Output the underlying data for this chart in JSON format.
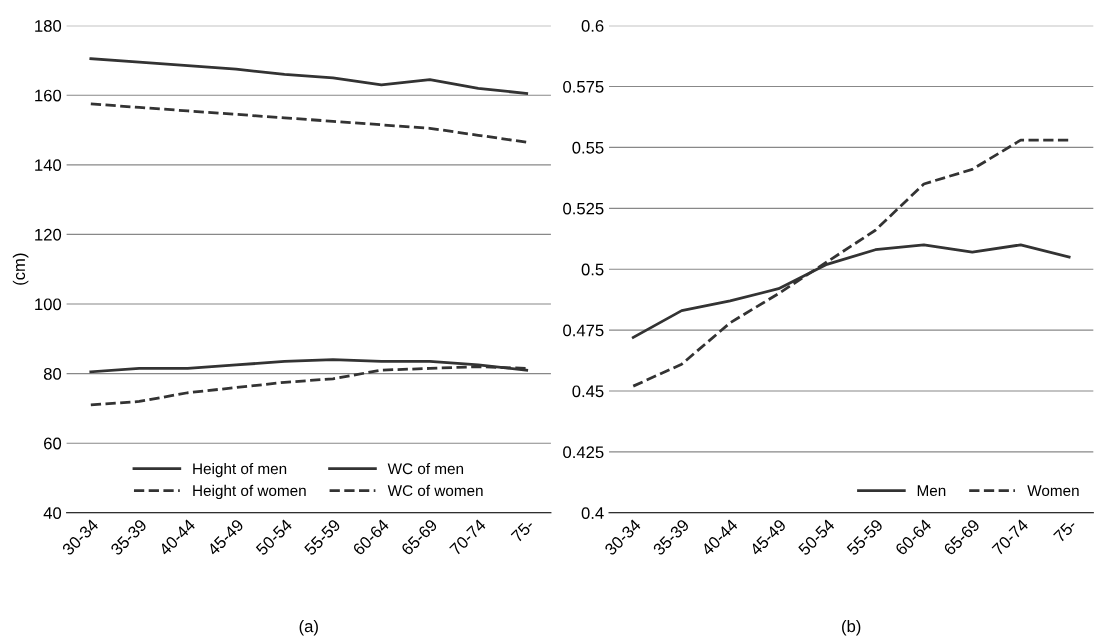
{
  "chart_data": [
    {
      "type": "line",
      "ylabel": "(cm)",
      "categories": [
        "30-34",
        "35-39",
        "40-44",
        "45-49",
        "50-54",
        "55-59",
        "60-64",
        "65-69",
        "70-74",
        "75-"
      ],
      "series": [
        {
          "name": "Height of men",
          "color": "#333333",
          "line_style": "solid",
          "values": [
            170.5,
            169.5,
            168.5,
            167.5,
            166,
            165,
            163,
            164.5,
            162,
            160.5
          ]
        },
        {
          "name": "Height of women",
          "color": "#333333",
          "line_style": "dashed",
          "values": [
            157.5,
            156.5,
            155.5,
            154.5,
            153.5,
            152.5,
            151.5,
            150.5,
            148.5,
            146.5
          ]
        },
        {
          "name": "WC of men",
          "color": "#333333",
          "line_style": "solid",
          "values": [
            80.5,
            81.5,
            81.5,
            82.5,
            83.5,
            84,
            83.5,
            83.5,
            82.5,
            81
          ]
        },
        {
          "name": "WC of women",
          "color": "#333333",
          "line_style": "dashed",
          "values": [
            71,
            72,
            74.5,
            76,
            77.5,
            78.5,
            81,
            81.5,
            82,
            81.5
          ]
        }
      ],
      "ylim": [
        40,
        180
      ],
      "yticks": [
        40,
        60,
        80,
        100,
        120,
        140,
        160,
        180
      ],
      "grid": "y",
      "legend": "bottom",
      "marker": "none",
      "annotations": [
        "(a)"
      ]
    },
    {
      "type": "line",
      "categories": [
        "30-34",
        "35-39",
        "40-44",
        "45-49",
        "50-54",
        "55-59",
        "60-64",
        "65-69",
        "70-74",
        "75-"
      ],
      "series": [
        {
          "name": "Men",
          "color": "#333333",
          "line_style": "solid",
          "values": [
            0.472,
            0.483,
            0.487,
            0.492,
            0.502,
            0.508,
            0.51,
            0.507,
            0.51,
            0.505
          ]
        },
        {
          "name": "Women",
          "color": "#333333",
          "line_style": "dashed",
          "values": [
            0.452,
            0.461,
            0.478,
            0.49,
            0.503,
            0.516,
            0.535,
            0.541,
            0.553,
            0.553
          ]
        }
      ],
      "ylim": [
        0.4,
        0.6
      ],
      "yticks": [
        0.4,
        0.425,
        0.45,
        0.475,
        0.5,
        0.525,
        0.55,
        0.575,
        0.6
      ],
      "grid": "y",
      "legend": "bottom right",
      "marker": "none",
      "annotations": [
        "(b)"
      ]
    }
  ]
}
